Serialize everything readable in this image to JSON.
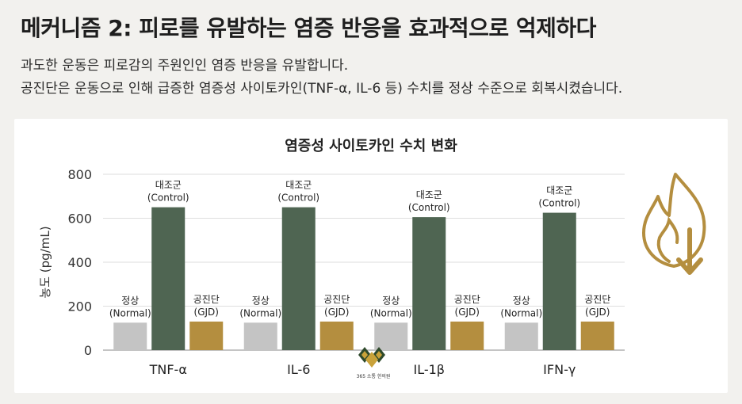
{
  "header": {
    "title": "메커니즘 2: 피로를 유발하는 염증 반응을 효과적으로 억제하다",
    "subtitle_line1": "과도한 운동은 피로감의 주원인인 염증 반응을 유발합니다.",
    "subtitle_line2": "공진단은 운동으로 인해 급증한 염증성 사이토카인(TNF-α, IL-6 등) 수치를 정상 수준으로 회복시켰습니다."
  },
  "logo": {
    "text": "365 소통 한의원"
  },
  "icons": {
    "flame_down": "flame-down-arrow-icon"
  },
  "chart_data": {
    "type": "bar",
    "title": "염증성 사이토카인 수치 변화",
    "ylabel": "농도 (pg/mL)",
    "xlabel": "",
    "ylim": [
      0,
      800
    ],
    "yticks": [
      0,
      200,
      400,
      600,
      800
    ],
    "categories": [
      "TNF-α",
      "IL-6",
      "IL-1β",
      "IFN-γ"
    ],
    "series": [
      {
        "label_line1": "정상",
        "label_line2": "(Normal)",
        "color": "#c4c4c4",
        "values": [
          125,
          125,
          125,
          125
        ]
      },
      {
        "label_line1": "대조군",
        "label_line2": "(Control)",
        "color": "#4f6552",
        "values": [
          650,
          650,
          605,
          625
        ]
      },
      {
        "label_line1": "공진단",
        "label_line2": "(GJD)",
        "color": "#b48e3f",
        "values": [
          130,
          130,
          130,
          130
        ]
      }
    ],
    "grid": true
  },
  "colors": {
    "accent_gold": "#b48e3f",
    "control_green": "#4f6552",
    "normal_gray": "#c4c4c4"
  }
}
